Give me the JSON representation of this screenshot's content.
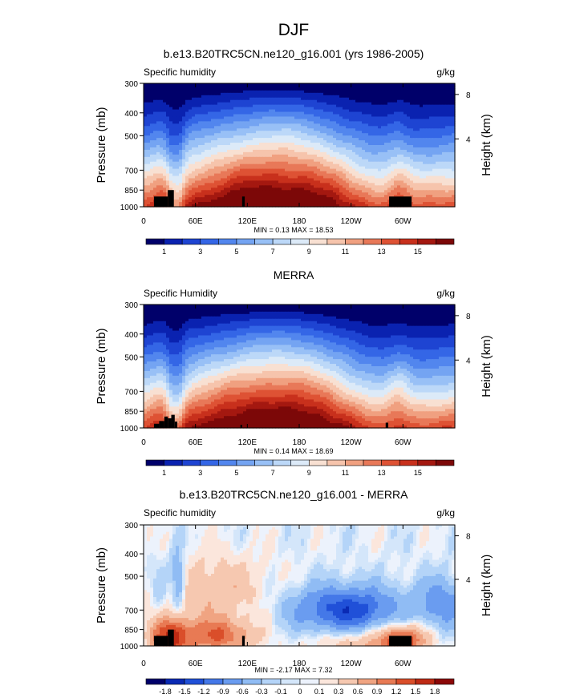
{
  "figure": {
    "title": "DJF"
  },
  "colors": {
    "abs_scale": [
      "#00006a",
      "#0a22b0",
      "#1e44d2",
      "#3466e6",
      "#5286ee",
      "#74a4f2",
      "#98c0f6",
      "#bcd8f8",
      "#dceaf8",
      "#f8e0d2",
      "#f6c4ac",
      "#f0a080",
      "#e87858",
      "#de5234",
      "#c8301c",
      "#a41810",
      "#7c0808"
    ],
    "diff_scale": [
      "#00006a",
      "#0a2ab4",
      "#2050d8",
      "#4478e8",
      "#6a9cf0",
      "#90bcf4",
      "#b4d4f8",
      "#d4e6fa",
      "#ecf2fc",
      "#fbe6dc",
      "#f6c8b0",
      "#f0a482",
      "#e87a54",
      "#da4e2a",
      "#be2a14",
      "#8c0808"
    ]
  },
  "chart_data": [
    {
      "type": "heatmap",
      "title": "b.e13.B20TRC5CN.ne120_g16.001 (yrs 1986-2005)",
      "left_label": "Specific humidity",
      "right_label": "g/kg",
      "xlabel": "",
      "ylabel": "Pressure (mb)",
      "ylabel_right": "Height (km)",
      "x_ticks": [
        "0",
        "60E",
        "120E",
        "180",
        "120W",
        "60W"
      ],
      "y_ticks": [
        "300",
        "400",
        "500",
        "700",
        "850",
        "1000"
      ],
      "y_right_ticks": [
        "8",
        "4"
      ],
      "stats": "MIN =  0.13  MAX =  18.53",
      "colorbar_labels": [
        "1",
        "3",
        "5",
        "7",
        "9",
        "11",
        "13",
        "15"
      ],
      "xlim": [
        0,
        360
      ],
      "ylim": [
        1000,
        300
      ]
    },
    {
      "type": "heatmap",
      "title": "MERRA",
      "left_label": "Specific Humidity",
      "right_label": "g/kg",
      "xlabel": "",
      "ylabel": "Pressure (mb)",
      "ylabel_right": "Height (km)",
      "x_ticks": [
        "0",
        "60E",
        "120E",
        "180",
        "120W",
        "60W"
      ],
      "y_ticks": [
        "300",
        "400",
        "500",
        "700",
        "850",
        "1000"
      ],
      "y_right_ticks": [
        "8",
        "4"
      ],
      "stats": "MIN =  0.14  MAX =  18.69",
      "colorbar_labels": [
        "1",
        "3",
        "5",
        "7",
        "9",
        "11",
        "13",
        "15"
      ],
      "xlim": [
        0,
        360
      ],
      "ylim": [
        1000,
        300
      ]
    },
    {
      "type": "heatmap",
      "title": "b.e13.B20TRC5CN.ne120_g16.001 - MERRA",
      "left_label": "Specific humidity",
      "right_label": "g/kg",
      "xlabel": "",
      "ylabel": "Pressure (mb)",
      "ylabel_right": "Height (km)",
      "x_ticks": [
        "0",
        "60E",
        "120E",
        "180",
        "120W",
        "60W"
      ],
      "y_ticks": [
        "300",
        "400",
        "500",
        "700",
        "850",
        "1000"
      ],
      "y_right_ticks": [
        "8",
        "4"
      ],
      "stats": "MIN = -2.17  MAX =  7.32",
      "colorbar_labels": [
        "-1.8",
        "-1.5",
        "-1.2",
        "-0.9",
        "-0.6",
        "-0.3",
        "-0.1",
        "0",
        "0.1",
        "0.3",
        "0.6",
        "0.9",
        "1.2",
        "1.5",
        "1.8"
      ],
      "xlim": [
        0,
        360
      ],
      "ylim": [
        1000,
        300
      ]
    }
  ]
}
